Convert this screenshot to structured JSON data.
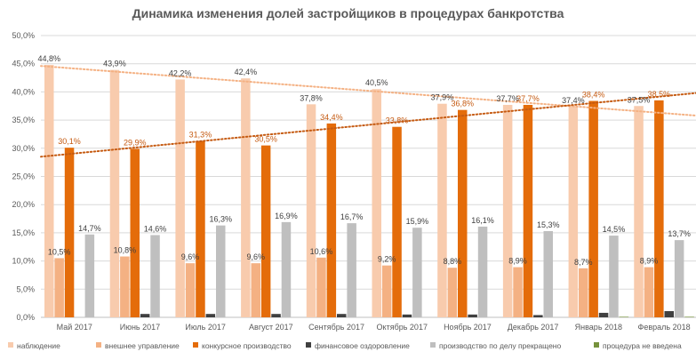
{
  "chart_data": {
    "type": "bar",
    "title": "Динамика изменения долей застройщиков в процедурах банкротства",
    "xlabel": "",
    "ylabel": "",
    "ylim": [
      0,
      50
    ],
    "yticks": [
      "0,0%",
      "5,0%",
      "10,0%",
      "15,0%",
      "20,0%",
      "25,0%",
      "30,0%",
      "35,0%",
      "40,0%",
      "45,0%",
      "50,0%"
    ],
    "grid": true,
    "legend_position": "bottom",
    "categories": [
      "Май 2017",
      "Июнь 2017",
      "Июль 2017",
      "Август 2017",
      "Сентябрь 2017",
      "Октябрь 2017",
      "Ноябрь 2017",
      "Декабрь 2017",
      "Январь 2018",
      "Февраль 2018"
    ],
    "series": [
      {
        "name": "наблюдение",
        "color": "#f8cbad",
        "values": [
          44.8,
          43.9,
          42.2,
          42.4,
          37.8,
          40.5,
          37.9,
          37.7,
          37.4,
          37.5
        ],
        "labels": [
          "44,8%",
          "43,9%",
          "42,2%",
          "42,4%",
          "37,8%",
          "40,5%",
          "37,9%",
          "37,7%",
          "37,4%",
          "37,5%"
        ],
        "label_color": "#404040"
      },
      {
        "name": "внешнее управление",
        "color": "#f4b183",
        "values": [
          10.5,
          10.8,
          9.6,
          9.6,
          10.6,
          9.2,
          8.8,
          8.9,
          8.7,
          8.9
        ],
        "labels": [
          "10,5%",
          "10,8%",
          "9,6%",
          "9,6%",
          "10,6%",
          "9,2%",
          "8,8%",
          "8,9%",
          "8,7%",
          "8,9%"
        ],
        "label_color": "#404040"
      },
      {
        "name": "конкурсное производство",
        "color": "#e46c0a",
        "values": [
          30.1,
          29.9,
          31.3,
          30.5,
          34.4,
          33.8,
          36.8,
          37.7,
          38.4,
          38.5
        ],
        "labels": [
          "30,1%",
          "29,9%",
          "31,3%",
          "30,5%",
          "34,4%",
          "33,8%",
          "36,8%",
          "37,7%",
          "38,4%",
          "38,5%"
        ],
        "label_color": "#c55a11"
      },
      {
        "name": "финансовое оздоровление",
        "color": "#404040",
        "values": [
          0.0,
          0.6,
          0.6,
          0.6,
          0.6,
          0.5,
          0.5,
          0.4,
          0.8,
          1.1
        ],
        "labels": [],
        "label_color": "#404040"
      },
      {
        "name": "производство по делу прекращено",
        "color": "#bfbfbf",
        "values": [
          14.7,
          14.6,
          16.3,
          16.9,
          16.7,
          15.9,
          16.1,
          15.3,
          14.5,
          13.7
        ],
        "labels": [
          "14,7%",
          "14,6%",
          "16,3%",
          "16,9%",
          "16,7%",
          "15,9%",
          "16,1%",
          "15,3%",
          "14,5%",
          "13,7%"
        ],
        "label_color": "#404040"
      },
      {
        "name": "процедура не введена",
        "color": "#76923c",
        "values": [
          0.0,
          0.0,
          0.0,
          0.0,
          0.0,
          0.0,
          0.0,
          0.0,
          0.1,
          0.1
        ],
        "labels": [],
        "label_color": "#404040"
      }
    ],
    "trendlines": [
      {
        "series": "наблюдение",
        "color": "#f4b183",
        "from": 44.6,
        "to": 35.8
      },
      {
        "series": "конкурсное производство",
        "color": "#c55a11",
        "from": 28.5,
        "to": 39.8
      }
    ]
  }
}
